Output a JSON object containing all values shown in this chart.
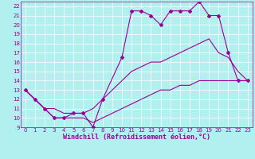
{
  "bg_color": "#b2f0f0",
  "grid_color": "#ffffff",
  "line_color": "#990099",
  "xlim": [
    -0.5,
    23.5
  ],
  "ylim": [
    9,
    22.5
  ],
  "xlabel": "Windchill (Refroidissement éolien,°C)",
  "xlabel_fontsize": 6.0,
  "xticks": [
    0,
    1,
    2,
    3,
    4,
    5,
    6,
    7,
    8,
    9,
    10,
    11,
    12,
    13,
    14,
    15,
    16,
    17,
    18,
    19,
    20,
    21,
    22,
    23
  ],
  "yticks": [
    9,
    10,
    11,
    12,
    13,
    14,
    15,
    16,
    17,
    18,
    19,
    20,
    21,
    22
  ],
  "tick_fontsize": 5.0,
  "series": [
    {
      "x": [
        0,
        1,
        2,
        3,
        4,
        5,
        6,
        7,
        8,
        10,
        11,
        12,
        13,
        14,
        15,
        16,
        17,
        18,
        19,
        20,
        21,
        22,
        23
      ],
      "y": [
        13,
        12,
        11,
        10,
        10,
        10.5,
        10.5,
        9,
        12,
        16.5,
        21.5,
        21.5,
        21,
        20,
        21.5,
        21.5,
        21.5,
        22.5,
        21,
        21,
        17,
        14,
        14
      ],
      "marker": "D",
      "markersize": 2.0,
      "lw": 0.8
    },
    {
      "x": [
        0,
        2,
        3,
        4,
        5,
        6,
        7,
        8,
        10,
        11,
        12,
        13,
        14,
        15,
        16,
        17,
        18,
        19,
        20,
        21,
        22,
        23
      ],
      "y": [
        13,
        11,
        11,
        10.5,
        10.5,
        10.5,
        11,
        12,
        14,
        15,
        15.5,
        16,
        16,
        16.5,
        17,
        17.5,
        18,
        18.5,
        17,
        16.5,
        15,
        14
      ],
      "marker": null,
      "markersize": 0,
      "lw": 0.8
    },
    {
      "x": [
        0,
        1,
        2,
        3,
        4,
        5,
        6,
        7,
        8,
        9,
        10,
        11,
        12,
        13,
        14,
        15,
        16,
        17,
        18,
        19,
        20,
        21,
        22,
        23
      ],
      "y": [
        13,
        12,
        11,
        10,
        10,
        10,
        10,
        9.5,
        10,
        10.5,
        11,
        11.5,
        12,
        12.5,
        13,
        13,
        13.5,
        13.5,
        14,
        14,
        14,
        14,
        14,
        14
      ],
      "marker": null,
      "markersize": 0,
      "lw": 0.8
    }
  ]
}
